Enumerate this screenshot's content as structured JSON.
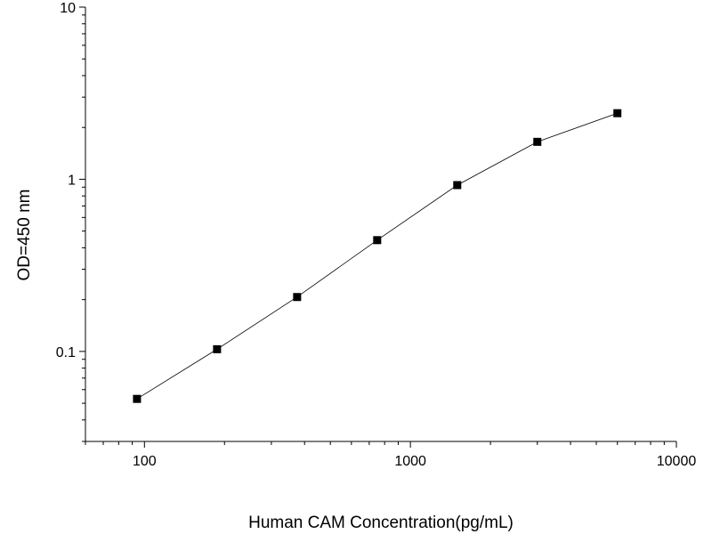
{
  "chart_data": {
    "type": "line",
    "title": "",
    "xlabel": "Human CAM  Concentration(pg/mL)",
    "ylabel": "OD=450 nm",
    "x_scale": "log",
    "y_scale": "log",
    "xlim": [
      60,
      10000
    ],
    "ylim": [
      0.03,
      10
    ],
    "x_ticks": [
      {
        "value": 100,
        "label": "100"
      },
      {
        "value": 1000,
        "label": "1000"
      },
      {
        "value": 10000,
        "label": "10000"
      }
    ],
    "y_ticks": [
      {
        "value": 0.1,
        "label": "0.1"
      },
      {
        "value": 1,
        "label": "1"
      },
      {
        "value": 10,
        "label": "10"
      }
    ],
    "grid": false,
    "legend": false,
    "marker": "square",
    "series": [
      {
        "x": [
          93.75,
          187.5,
          375,
          750,
          1500,
          3000,
          6000
        ],
        "y": [
          0.053,
          0.103,
          0.207,
          0.443,
          0.925,
          1.65,
          2.42
        ]
      }
    ]
  }
}
